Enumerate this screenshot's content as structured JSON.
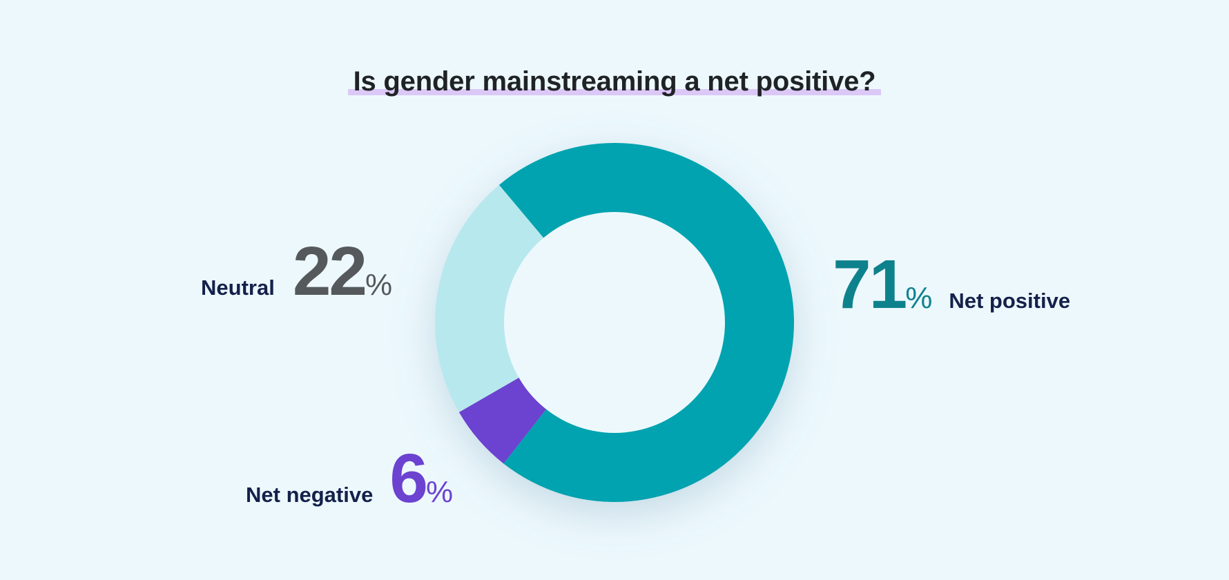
{
  "chart_data": {
    "type": "pie",
    "variant": "donut",
    "title": "Is gender mainstreaming a net positive?",
    "unit": "%",
    "slices": [
      {
        "label": "Net positive",
        "value": 71,
        "color": "#00a3af",
        "text_color": "#0e828c"
      },
      {
        "label": "Net negative",
        "value": 6,
        "color": "#6c42d0",
        "text_color": "#6c42d0"
      },
      {
        "label": "Neutral",
        "value": 22,
        "color": "#b7e8ee",
        "text_color": "#55595c"
      }
    ],
    "legend": "none",
    "data_labels": "outside"
  },
  "colors": {
    "background": "#edf8fd",
    "title_underline": "#dcc8f7",
    "label_text": "#14214a"
  }
}
